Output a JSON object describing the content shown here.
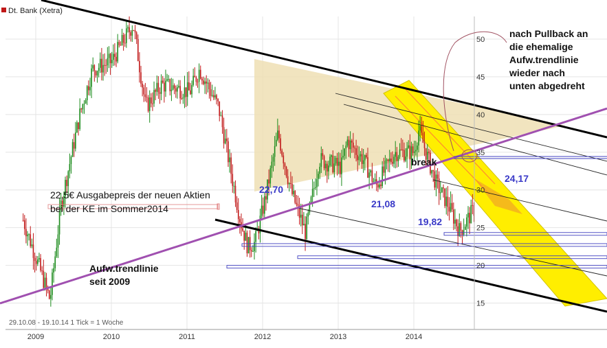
{
  "header": {
    "title": "Dt. Bank (Xetra)"
  },
  "footer": {
    "info": "29.10.08 - 19.10.14   1 Tick = 1 Woche"
  },
  "colors": {
    "price_up": "#1a8a1a",
    "price_down": "#c01818",
    "trend_line": "#a050b0",
    "channel_line": "#000000",
    "level_text": "#3a3ac8",
    "level_line": "#4040c0",
    "triangle_fill": "#eedfb4",
    "down_channel_fill": "#ffee00",
    "grid": "#e4e4e4",
    "annotation_box": "#e08080"
  },
  "chart_data": {
    "type": "candlestick",
    "x_tick_labels": [
      "2009",
      "2010",
      "2011",
      "2012",
      "2013",
      "2014"
    ],
    "y_ticks": [
      15,
      20,
      25,
      30,
      35,
      40,
      45,
      50
    ],
    "ylim": [
      11.5,
      53
    ],
    "price_path": [
      [
        "2008-11-01",
        26
      ],
      [
        "2009-01-15",
        20
      ],
      [
        "2009-03-09",
        15.4
      ],
      [
        "2009-05-01",
        28
      ],
      [
        "2009-08-01",
        40
      ],
      [
        "2009-10-01",
        46
      ],
      [
        "2010-01-01",
        47
      ],
      [
        "2010-04-15",
        52
      ],
      [
        "2010-06-15",
        41
      ],
      [
        "2010-09-01",
        44
      ],
      [
        "2011-01-15",
        43
      ],
      [
        "2011-03-01",
        46
      ],
      [
        "2011-06-01",
        41
      ],
      [
        "2011-09-15",
        26
      ],
      [
        "2011-10-20",
        22.5
      ],
      [
        "2011-11-25",
        23
      ],
      [
        "2012-01-15",
        29
      ],
      [
        "2012-03-15",
        37.5
      ],
      [
        "2012-05-15",
        30
      ],
      [
        "2012-07-25",
        24.4
      ],
      [
        "2012-10-01",
        34
      ],
      [
        "2013-01-15",
        33
      ],
      [
        "2013-02-15",
        36.5
      ],
      [
        "2013-05-01",
        34
      ],
      [
        "2013-07-01",
        30.5
      ],
      [
        "2013-10-01",
        35
      ],
      [
        "2014-01-01",
        35
      ],
      [
        "2014-01-25",
        38
      ],
      [
        "2014-04-15",
        31
      ],
      [
        "2014-06-15",
        28
      ],
      [
        "2014-08-10",
        24.5
      ],
      [
        "2014-10-19",
        27.5
      ]
    ],
    "horizontal_levels": [
      {
        "label": "24,17",
        "value": 24.17
      },
      {
        "label": "22,70",
        "value": 22.7
      },
      {
        "label": "21,08",
        "value": 21.08
      },
      {
        "label": "19,82",
        "value": 19.82
      }
    ],
    "annotations": {
      "pullback_note": [
        "nach Pullback an",
        "die ehemalige",
        "Aufw.trendlinie",
        "wieder nach",
        "unten abgedreht"
      ],
      "capital_increase_note": [
        "22,5€ Ausgabepreis der neuen Aktien",
        "bei der KE im Sommer2014"
      ],
      "trendline_note": [
        "Aufw.trendlinie",
        "seit 2009"
      ],
      "break_label": "break"
    }
  }
}
